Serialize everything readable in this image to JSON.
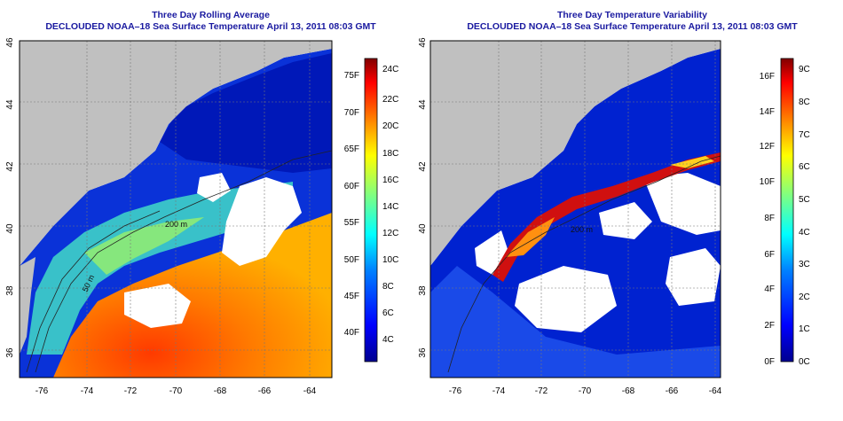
{
  "panels": [
    {
      "title": "Three Day Rolling Average",
      "subtitle": "DECLOUDED NOAA–18 Sea Surface Temperature April 13, 2011 08:03 GMT",
      "x_ticks": [
        "-76",
        "-74",
        "-72",
        "-70",
        "-68",
        "-66",
        "-64"
      ],
      "y_ticks": [
        "46",
        "44",
        "42",
        "40",
        "38",
        "36"
      ],
      "colorbar_f": [
        "75F",
        "70F",
        "65F",
        "60F",
        "55F",
        "50F",
        "45F",
        "40F"
      ],
      "colorbar_c": [
        "24C",
        "22C",
        "20C",
        "18C",
        "16C",
        "14C",
        "12C",
        "10C",
        "8C",
        "6C",
        "4C"
      ],
      "contour_labels": [
        "200 m",
        "50 m"
      ]
    },
    {
      "title": "Three Day Temperature Variability",
      "subtitle": "DECLOUDED NOAA–18 Sea Surface Temperature April 13, 2011 08:03 GMT",
      "x_ticks": [
        "-76",
        "-74",
        "-72",
        "-70",
        "-68",
        "-66",
        "-64"
      ],
      "y_ticks": [
        "46",
        "44",
        "42",
        "40",
        "38",
        "36"
      ],
      "colorbar_f": [
        "16F",
        "14F",
        "12F",
        "10F",
        "8F",
        "6F",
        "4F",
        "2F",
        "0F"
      ],
      "colorbar_c": [
        "9C",
        "8C",
        "7C",
        "6C",
        "5C",
        "4C",
        "3C",
        "2C",
        "1C",
        "0C"
      ],
      "contour_labels": [
        "200 m"
      ]
    }
  ],
  "colors": {
    "land": "#c0c0c0",
    "title_text": "#1a1aa0",
    "jet_colormap": [
      "#00008f",
      "#0000ff",
      "#0080ff",
      "#00ffff",
      "#80ff80",
      "#ffff00",
      "#ff8000",
      "#ff0000",
      "#800000"
    ]
  }
}
